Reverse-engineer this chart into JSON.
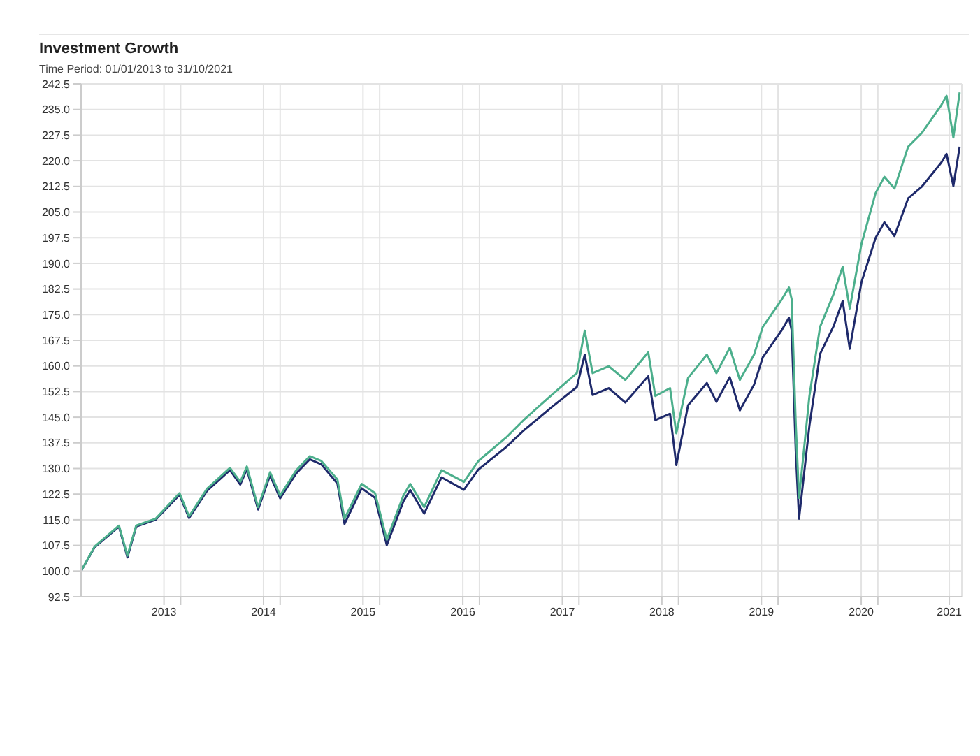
{
  "chart_data": {
    "type": "line",
    "title": "Investment Growth",
    "subtitle": "Time Period: 01/01/2013 to 31/10/2021",
    "x": [
      "2013-01-01",
      "2013-02-20",
      "2013-05-20",
      "2013-06-20",
      "2013-07-22",
      "2013-10-01",
      "2013-12-28",
      "2014-02-01",
      "2014-04-08",
      "2014-07-01",
      "2014-08-08",
      "2014-09-01",
      "2014-10-12",
      "2014-11-25",
      "2015-01-01",
      "2015-03-01",
      "2015-04-20",
      "2015-06-01",
      "2015-07-30",
      "2015-08-25",
      "2015-10-27",
      "2015-12-15",
      "2016-01-27",
      "2016-03-28",
      "2016-04-22",
      "2016-06-12",
      "2016-08-15",
      "2016-11-05",
      "2016-12-28",
      "2017-04-08",
      "2017-06-15",
      "2017-09-27",
      "2017-12-24",
      "2018-01-22",
      "2018-02-20",
      "2018-04-20",
      "2018-06-20",
      "2018-09-12",
      "2018-10-08",
      "2018-12-01",
      "2018-12-24",
      "2019-02-05",
      "2019-04-15",
      "2019-05-20",
      "2019-07-08",
      "2019-08-14",
      "2019-10-05",
      "2019-11-06",
      "2020-01-15",
      "2020-02-10",
      "2020-02-20",
      "2020-03-06",
      "2020-03-18",
      "2020-04-25",
      "2020-06-03",
      "2020-07-22",
      "2020-08-25",
      "2020-09-20",
      "2020-11-02",
      "2020-12-24",
      "2021-01-25",
      "2021-03-03",
      "2021-04-22",
      "2021-06-12",
      "2021-08-22",
      "2021-09-10",
      "2021-10-05",
      "2021-10-28"
    ],
    "series": [
      {
        "color": "#1f2a6b",
        "values": [
          100,
          107.0,
          113.0,
          104.0,
          113.0,
          115.0,
          122.3,
          115.5,
          123.5,
          129.5,
          125.3,
          129.8,
          118.0,
          128.0,
          121.3,
          128.6,
          132.7,
          131.2,
          125.6,
          113.8,
          124.2,
          121.4,
          107.6,
          120.4,
          123.7,
          116.8,
          127.4,
          123.8,
          129.7,
          136.2,
          141.3,
          148.2,
          153.8,
          163.3,
          151.5,
          153.5,
          149.3,
          157.0,
          144.2,
          146.0,
          131.0,
          148.5,
          155.0,
          149.5,
          156.7,
          147.0,
          154.5,
          162.5,
          170.5,
          174.1,
          170.5,
          135.0,
          115.3,
          142.5,
          163.5,
          171.5,
          179.0,
          165.0,
          184.5,
          197.5,
          202.0,
          198.0,
          209.0,
          212.5,
          219.5,
          222.0,
          212.6,
          224.1
        ]
      },
      {
        "color": "#4caf8c",
        "values": [
          100,
          107.2,
          113.3,
          104.5,
          113.3,
          115.3,
          122.8,
          116.0,
          124.1,
          130.2,
          126.1,
          130.6,
          118.7,
          128.9,
          122.1,
          129.5,
          133.6,
          132.2,
          126.8,
          115.3,
          125.5,
          122.8,
          109.2,
          122.1,
          125.5,
          118.7,
          129.5,
          126.1,
          132.2,
          139.0,
          144.4,
          151.8,
          157.9,
          170.3,
          157.9,
          159.9,
          155.9,
          164.0,
          151.2,
          153.5,
          140.3,
          156.5,
          163.3,
          157.9,
          165.3,
          155.9,
          163.3,
          171.4,
          179.5,
          182.9,
          179.5,
          143.0,
          121.4,
          151.2,
          171.4,
          180.9,
          189.0,
          176.8,
          195.7,
          210.6,
          215.3,
          211.9,
          224.1,
          228.2,
          236.3,
          239.0,
          226.8,
          240.0
        ]
      }
    ],
    "xlim": [
      "2013-01-01",
      "2021-11-05"
    ],
    "xticks": [
      {
        "value": "2013-11-01",
        "label": "2013"
      },
      {
        "value": "2014-01-01",
        "label": null
      },
      {
        "value": "2014-11-01",
        "label": "2014"
      },
      {
        "value": "2015-01-01",
        "label": null
      },
      {
        "value": "2015-11-01",
        "label": "2015"
      },
      {
        "value": "2016-01-01",
        "label": null
      },
      {
        "value": "2016-11-01",
        "label": "2016"
      },
      {
        "value": "2017-01-01",
        "label": null
      },
      {
        "value": "2017-11-01",
        "label": "2017"
      },
      {
        "value": "2018-01-01",
        "label": null
      },
      {
        "value": "2018-11-01",
        "label": "2018"
      },
      {
        "value": "2019-01-01",
        "label": null
      },
      {
        "value": "2019-11-01",
        "label": "2019"
      },
      {
        "value": "2020-01-01",
        "label": null
      },
      {
        "value": "2020-11-01",
        "label": "2020"
      },
      {
        "value": "2021-01-01",
        "label": null
      },
      {
        "value": "2021-09-20",
        "label": "2021"
      }
    ],
    "ylim": [
      92.5,
      242.5
    ],
    "yticks": [
      {
        "value": 92.5,
        "label": "92.5"
      },
      {
        "value": 100,
        "label": "100.0"
      },
      {
        "value": 107.5,
        "label": "107.5"
      },
      {
        "value": 115,
        "label": "115.0"
      },
      {
        "value": 122.5,
        "label": "122.5"
      },
      {
        "value": 130,
        "label": "130.0"
      },
      {
        "value": 137.5,
        "label": "137.5"
      },
      {
        "value": 145,
        "label": "145.0"
      },
      {
        "value": 152.5,
        "label": "152.5"
      },
      {
        "value": 160,
        "label": "160.0"
      },
      {
        "value": 167.5,
        "label": "167.5"
      },
      {
        "value": 175,
        "label": "175.0"
      },
      {
        "value": 182.5,
        "label": "182.5"
      },
      {
        "value": 190,
        "label": "190.0"
      },
      {
        "value": 197.5,
        "label": "197.5"
      },
      {
        "value": 205,
        "label": "205.0"
      },
      {
        "value": 212.5,
        "label": "212.5"
      },
      {
        "value": 220,
        "label": "220.0"
      },
      {
        "value": 227.5,
        "label": "227.5"
      },
      {
        "value": 235,
        "label": "235.0"
      },
      {
        "value": 242.5,
        "label": "242.5"
      }
    ],
    "grid": true,
    "marker": "none",
    "line_style": "solid"
  }
}
